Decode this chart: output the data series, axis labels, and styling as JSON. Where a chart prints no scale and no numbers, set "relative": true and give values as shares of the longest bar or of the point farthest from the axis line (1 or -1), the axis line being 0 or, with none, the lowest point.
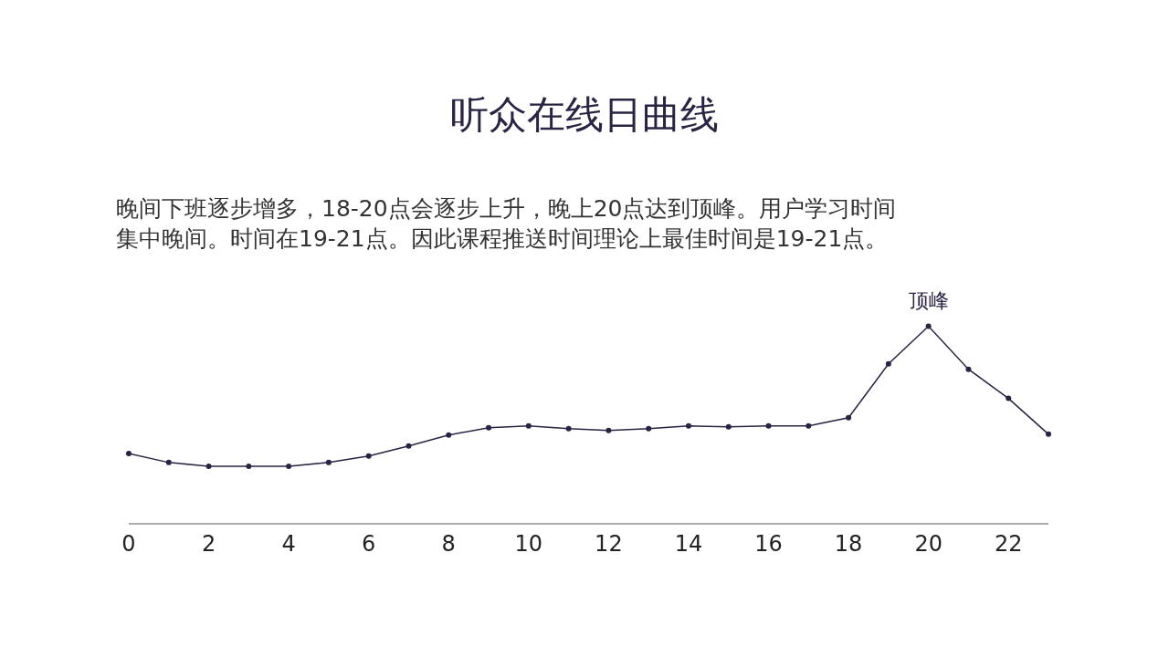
{
  "chart_data": {
    "type": "line",
    "title": "听众在线日曲线",
    "subtitle": "晚间下班逐步增多，18-20点会逐步上升，晚上20点达到顶峰。用户学习时间集中晚间。时间在19-21点。因此课程推送时间理论上最佳时间是19-21点。",
    "relative": true,
    "x": [
      0,
      1,
      2,
      3,
      4,
      5,
      6,
      7,
      8,
      9,
      10,
      11,
      12,
      13,
      14,
      15,
      16,
      17,
      18,
      19,
      20,
      21,
      22,
      23
    ],
    "xlim": [
      0,
      23
    ],
    "xticks": [
      0,
      2,
      4,
      6,
      8,
      10,
      12,
      14,
      16,
      18,
      20,
      22
    ],
    "series": [
      {
        "color": "#2a2342",
        "values": [
          0.353,
          0.307,
          0.288,
          0.288,
          0.288,
          0.307,
          0.34,
          0.391,
          0.447,
          0.484,
          0.493,
          0.479,
          0.47,
          0.479,
          0.493,
          0.488,
          0.493,
          0.493,
          0.535,
          0.809,
          1,
          0.781,
          0.633,
          0.451
        ]
      }
    ],
    "annotations": [
      {
        "text": "顶峰",
        "x": 20,
        "y": 1
      }
    ],
    "marker": "circle",
    "line_style": "solid"
  }
}
